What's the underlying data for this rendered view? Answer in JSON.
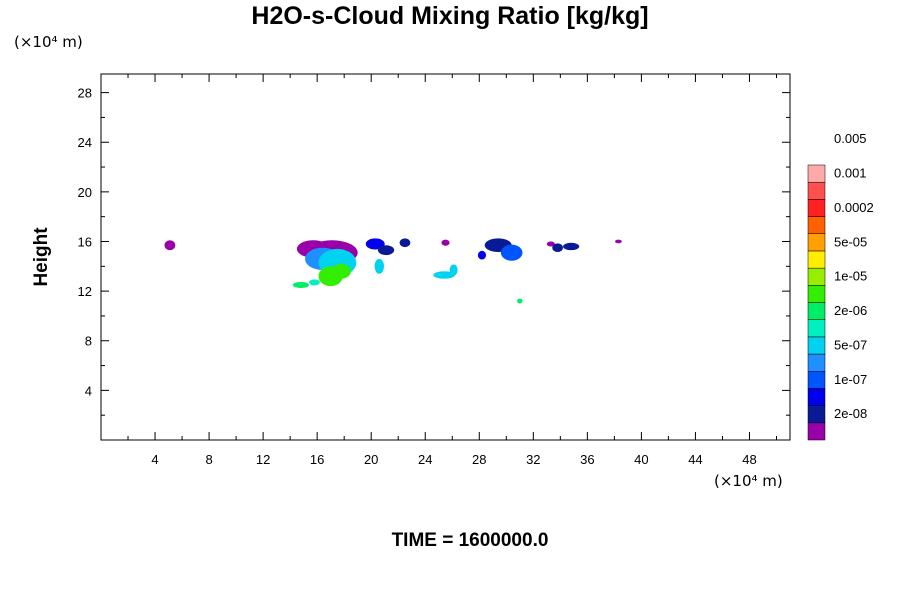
{
  "chart_data": {
    "type": "heatmap",
    "title": "H2O-s-Cloud Mixing Ratio [kg/kg]",
    "xlabel": "",
    "ylabel": "Height",
    "x_unit": "(×10⁴ m)",
    "y_unit": "(×10⁴ m)",
    "xlim": [
      0,
      51
    ],
    "ylim": [
      0,
      29.5
    ],
    "x_ticks": [
      4,
      8,
      12,
      16,
      20,
      24,
      28,
      32,
      36,
      40,
      44,
      48
    ],
    "y_ticks": [
      4,
      8,
      12,
      16,
      20,
      24,
      28
    ],
    "colorbar": {
      "colors": [
        "#9900aa",
        "#0a1a96",
        "#0000ee",
        "#0055ff",
        "#1e90ff",
        "#00d2f0",
        "#00f0c0",
        "#00ee66",
        "#33ee00",
        "#99ee00",
        "#ffee00",
        "#ffa000",
        "#ff6000",
        "#ff2020",
        "#ff5050",
        "#ffaaaa"
      ],
      "labels": [
        "2e-08",
        "1e-07",
        "5e-07",
        "2e-06",
        "1e-05",
        "5e-05",
        "0.0002",
        "0.001",
        "0.005"
      ]
    },
    "regions": [
      {
        "x": 5.1,
        "y": 15.7,
        "rx": 0.4,
        "ry": 0.4,
        "level": 0
      },
      {
        "x": 15.7,
        "y": 15.4,
        "rx": 1.2,
        "ry": 0.7,
        "level": 0
      },
      {
        "x": 17.1,
        "y": 15.1,
        "rx": 1.9,
        "ry": 1.0,
        "level": 0
      },
      {
        "x": 16.4,
        "y": 14.6,
        "rx": 1.3,
        "ry": 0.9,
        "level": 4
      },
      {
        "x": 17.5,
        "y": 14.3,
        "rx": 1.4,
        "ry": 1.1,
        "level": 5
      },
      {
        "x": 17.0,
        "y": 13.2,
        "rx": 0.9,
        "ry": 0.8,
        "level": 8
      },
      {
        "x": 17.8,
        "y": 13.6,
        "rx": 0.7,
        "ry": 0.6,
        "level": 8
      },
      {
        "x": 14.8,
        "y": 12.5,
        "rx": 0.6,
        "ry": 0.25,
        "level": 7
      },
      {
        "x": 15.8,
        "y": 12.7,
        "rx": 0.4,
        "ry": 0.25,
        "level": 6
      },
      {
        "x": 20.3,
        "y": 15.8,
        "rx": 0.7,
        "ry": 0.45,
        "level": 2
      },
      {
        "x": 21.1,
        "y": 15.3,
        "rx": 0.6,
        "ry": 0.4,
        "level": 1
      },
      {
        "x": 20.6,
        "y": 14.0,
        "rx": 0.35,
        "ry": 0.6,
        "level": 5
      },
      {
        "x": 22.5,
        "y": 15.9,
        "rx": 0.4,
        "ry": 0.35,
        "level": 1
      },
      {
        "x": 25.5,
        "y": 15.9,
        "rx": 0.3,
        "ry": 0.25,
        "level": 0
      },
      {
        "x": 25.4,
        "y": 13.3,
        "rx": 0.8,
        "ry": 0.3,
        "level": 5
      },
      {
        "x": 26.1,
        "y": 13.7,
        "rx": 0.3,
        "ry": 0.45,
        "level": 5
      },
      {
        "x": 29.4,
        "y": 15.7,
        "rx": 1.0,
        "ry": 0.55,
        "level": 1
      },
      {
        "x": 30.4,
        "y": 15.1,
        "rx": 0.8,
        "ry": 0.65,
        "level": 3
      },
      {
        "x": 28.2,
        "y": 14.9,
        "rx": 0.3,
        "ry": 0.35,
        "level": 2
      },
      {
        "x": 31.0,
        "y": 11.2,
        "rx": 0.2,
        "ry": 0.2,
        "level": 7
      },
      {
        "x": 33.3,
        "y": 15.8,
        "rx": 0.3,
        "ry": 0.2,
        "level": 0
      },
      {
        "x": 33.8,
        "y": 15.5,
        "rx": 0.4,
        "ry": 0.35,
        "level": 1
      },
      {
        "x": 34.8,
        "y": 15.6,
        "rx": 0.6,
        "ry": 0.3,
        "level": 1
      },
      {
        "x": 38.3,
        "y": 16.0,
        "rx": 0.25,
        "ry": 0.15,
        "level": 0
      }
    ]
  },
  "time_label": "TIME = 1600000.0"
}
